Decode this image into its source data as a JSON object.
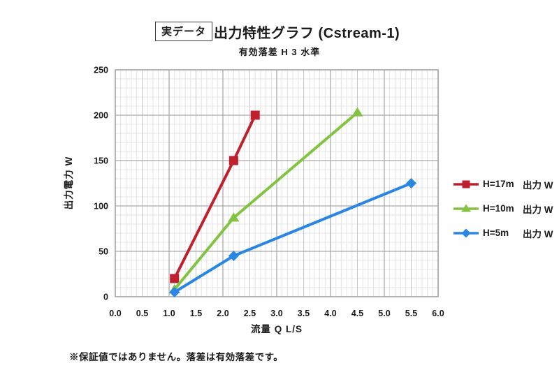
{
  "page": {
    "badge": "実データ",
    "title": "出力特性グラフ (Cstream-1)",
    "subtitle": "有効落差 H 3 水準",
    "footnote": "※保証値ではありません。落差は有効落差です。"
  },
  "chart_data": {
    "type": "line",
    "title": "出力特性グラフ (Cstream-1)",
    "subtitle": "有効落差 H 3 水準",
    "xlabel": "流量 Q L/S",
    "ylabel": "出力電力 W",
    "xlim": [
      0.0,
      6.0
    ],
    "ylim": [
      0,
      250
    ],
    "x_minor_step": 0.1,
    "y_minor_step": 10,
    "x_tick_labels": [
      "0.0",
      "0.5",
      "1.0",
      "1.5",
      "2.0",
      "2.5",
      "3.0",
      "3.5",
      "4.0",
      "4.5",
      "5.0",
      "5.5",
      "6.0"
    ],
    "y_tick_labels": [
      "0",
      "50",
      "100",
      "150",
      "200",
      "250"
    ],
    "grid": true,
    "legend_position": "right",
    "series": [
      {
        "name": "H=17m",
        "unit_label": "出力 W",
        "marker": "square",
        "color": "#be202e",
        "points": [
          [
            1.1,
            20
          ],
          [
            2.2,
            150
          ],
          [
            2.6,
            200
          ]
        ]
      },
      {
        "name": "H=10m",
        "unit_label": "出力 W",
        "marker": "triangle",
        "color": "#82c341",
        "points": [
          [
            1.1,
            8
          ],
          [
            2.2,
            87
          ],
          [
            4.5,
            203
          ]
        ]
      },
      {
        "name": "H=5m",
        "unit_label": "出力 W",
        "marker": "diamond",
        "color": "#2986e2",
        "points": [
          [
            1.1,
            5
          ],
          [
            2.2,
            45
          ],
          [
            5.5,
            125
          ]
        ]
      }
    ]
  }
}
